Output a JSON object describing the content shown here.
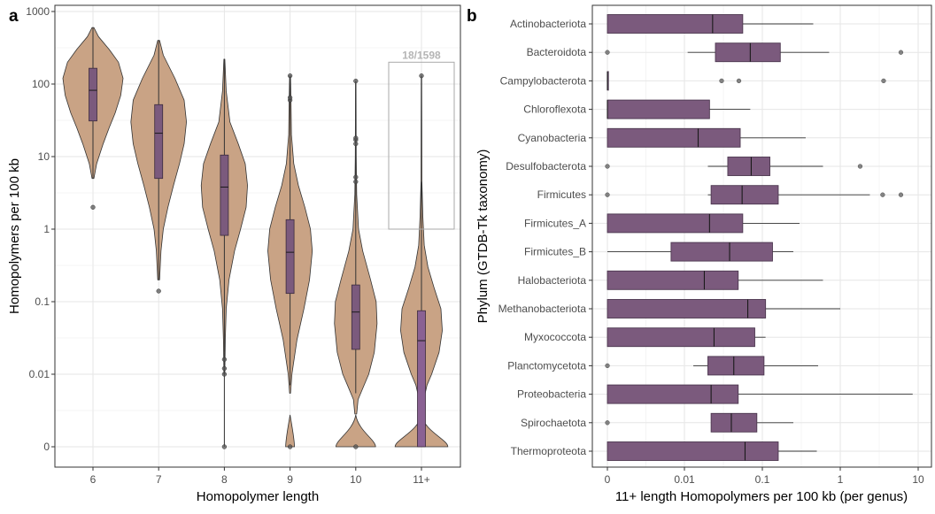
{
  "panels": {
    "a": {
      "letter": "a"
    },
    "b": {
      "letter": "b"
    }
  },
  "chart_data": [
    {
      "type": "violin",
      "panel": "a",
      "xlabel": "Homopolymer length",
      "ylabel": "Homopolymers per 100 kb",
      "yscale": "pseudo-log10 (0 shown at bottom)",
      "ylim": [
        0,
        1000
      ],
      "yticks": [
        "0",
        "0.01",
        "0.1",
        "1",
        "10",
        "100",
        "1000"
      ],
      "yticks_values": [
        0,
        0.01,
        0.1,
        1,
        10,
        100,
        1000
      ],
      "categories": [
        "6",
        "7",
        "8",
        "9",
        "10",
        "11+"
      ],
      "grid": true,
      "colors": {
        "violin_fill": "#c9a385",
        "box_fill": "#7b5a7d",
        "box_fill_11": "#8a6193",
        "outlier": "#555555",
        "highlight_box": "#aaaaaa"
      },
      "annotation": {
        "text": "18/1598",
        "category": "11+",
        "y_range": [
          1,
          200
        ]
      },
      "violins": [
        {
          "category": "6",
          "min": 2,
          "max": 600,
          "q1": 31,
          "median": 82,
          "q3": 165,
          "whisker_low": 5,
          "whisker_high": 600,
          "outliers": [
            2
          ],
          "density": [
            [
              5,
              0.02
            ],
            [
              8,
              0.08
            ],
            [
              15,
              0.22
            ],
            [
              25,
              0.35
            ],
            [
              40,
              0.48
            ],
            [
              70,
              0.6
            ],
            [
              120,
              0.65
            ],
            [
              200,
              0.55
            ],
            [
              300,
              0.35
            ],
            [
              450,
              0.12
            ],
            [
              600,
              0.02
            ]
          ]
        },
        {
          "category": "7",
          "min": 0.14,
          "max": 400,
          "q1": 5,
          "median": 21,
          "q3": 52,
          "whisker_low": 0.2,
          "whisker_high": 400,
          "outliers": [
            0.14
          ],
          "density": [
            [
              0.2,
              0.02
            ],
            [
              0.5,
              0.05
            ],
            [
              1,
              0.1
            ],
            [
              2,
              0.2
            ],
            [
              4,
              0.32
            ],
            [
              8,
              0.45
            ],
            [
              15,
              0.55
            ],
            [
              30,
              0.6
            ],
            [
              60,
              0.55
            ],
            [
              120,
              0.35
            ],
            [
              250,
              0.1
            ],
            [
              400,
              0.02
            ]
          ]
        },
        {
          "category": "8",
          "min": 0,
          "max": 220,
          "q1": 0.82,
          "median": 3.8,
          "q3": 10.5,
          "whisker_low": 0.02,
          "whisker_high": 220,
          "outliers": [
            0,
            0.012,
            0.016,
            0.01
          ],
          "zero_blob": 0,
          "density": [
            [
              0.01,
              0.01
            ],
            [
              0.03,
              0.02
            ],
            [
              0.08,
              0.04
            ],
            [
              0.2,
              0.1
            ],
            [
              0.5,
              0.22
            ],
            [
              1,
              0.35
            ],
            [
              2,
              0.47
            ],
            [
              4,
              0.5
            ],
            [
              8,
              0.45
            ],
            [
              15,
              0.3
            ],
            [
              30,
              0.12
            ],
            [
              80,
              0.04
            ],
            [
              220,
              0.01
            ]
          ]
        },
        {
          "category": "9",
          "min": 0,
          "max": 130,
          "q1": 0.13,
          "median": 0.48,
          "q3": 1.35,
          "whisker_low": 0.005,
          "whisker_high": 130,
          "outliers": [
            0,
            60,
            65,
            130
          ],
          "zero_blob": 0.1,
          "density": [
            [
              0.003,
              0.01
            ],
            [
              0.01,
              0.04
            ],
            [
              0.03,
              0.15
            ],
            [
              0.08,
              0.3
            ],
            [
              0.2,
              0.42
            ],
            [
              0.5,
              0.48
            ],
            [
              1,
              0.44
            ],
            [
              2,
              0.32
            ],
            [
              4,
              0.18
            ],
            [
              8,
              0.08
            ],
            [
              20,
              0.03
            ],
            [
              60,
              0.02
            ],
            [
              130,
              0.01
            ]
          ]
        },
        {
          "category": "10",
          "min": 0,
          "max": 110,
          "q1": 0.022,
          "median": 0.072,
          "q3": 0.17,
          "whisker_low": 0.003,
          "whisker_high": 110,
          "outliers": [
            0,
            4.5,
            5.2,
            15,
            17,
            18,
            110
          ],
          "zero_blob": 0.45,
          "density": [
            [
              0.0008,
              0.02
            ],
            [
              0.002,
              0.05
            ],
            [
              0.005,
              0.18
            ],
            [
              0.01,
              0.28
            ],
            [
              0.02,
              0.4
            ],
            [
              0.05,
              0.46
            ],
            [
              0.1,
              0.44
            ],
            [
              0.2,
              0.32
            ],
            [
              0.5,
              0.15
            ],
            [
              1,
              0.06
            ],
            [
              3,
              0.02
            ],
            [
              10,
              0.01
            ],
            [
              110,
              0.005
            ]
          ]
        },
        {
          "category": "11+",
          "min": 0,
          "max": 130,
          "q1": 0,
          "median": 0.029,
          "q3": 0.075,
          "whisker_low": 0,
          "whisker_high": 4.5,
          "outliers": [
            130
          ],
          "zero_blob": 0.6,
          "density": [
            [
              0.002,
              0.05
            ],
            [
              0.005,
              0.12
            ],
            [
              0.01,
              0.22
            ],
            [
              0.02,
              0.38
            ],
            [
              0.04,
              0.45
            ],
            [
              0.08,
              0.42
            ],
            [
              0.15,
              0.28
            ],
            [
              0.3,
              0.14
            ],
            [
              0.6,
              0.06
            ],
            [
              1.5,
              0.03
            ],
            [
              4.5,
              0.01
            ],
            [
              130,
              0.005
            ]
          ]
        }
      ]
    },
    {
      "type": "boxplot-horizontal",
      "panel": "b",
      "xlabel": "11+ length Homopolymers per 100 kb (per genus)",
      "ylabel": "Phylum (GTDB-Tk taxonomy)",
      "xscale": "pseudo-log10 (0 shown at left)",
      "xlim": [
        0,
        10
      ],
      "xticks": [
        "0",
        "0.01",
        "0.1",
        "1",
        "10"
      ],
      "xticks_values": [
        0,
        0.01,
        0.1,
        1,
        10
      ],
      "grid": true,
      "colors": {
        "box_fill": "#7b5a7d",
        "box_stroke": "#4d3850",
        "outlier": "#666666"
      },
      "categories": [
        "Actinobacteriota",
        "Bacteroidota",
        "Campylobacterota",
        "Chloroflexota",
        "Cyanobacteria",
        "Desulfobacterota",
        "Firmicutes",
        "Firmicutes_A",
        "Firmicutes_B",
        "Halobacteriota",
        "Methanobacteriota",
        "Myxococcota",
        "Planctomycetota",
        "Proteobacteria",
        "Spirochaetota",
        "Thermoproteota"
      ],
      "boxes": [
        {
          "name": "Actinobacteriota",
          "whisker_low": 0,
          "q1": 0,
          "median": 0.023,
          "q3": 0.056,
          "whisker_high": 0.45,
          "outliers": []
        },
        {
          "name": "Bacteroidota",
          "whisker_low": 0.011,
          "q1": 0.025,
          "median": 0.07,
          "q3": 0.17,
          "whisker_high": 0.72,
          "outliers": [
            0,
            6
          ]
        },
        {
          "name": "Campylobacterota",
          "whisker_low": 0,
          "q1": 0,
          "median": 0,
          "q3": 0,
          "whisker_high": 0,
          "outliers": [
            0.03,
            0.05,
            3.6
          ]
        },
        {
          "name": "Chloroflexota",
          "whisker_low": 0,
          "q1": 0,
          "median": 0,
          "q3": 0.021,
          "whisker_high": 0.07,
          "outliers": []
        },
        {
          "name": "Cyanobacteria",
          "whisker_low": 0,
          "q1": 0,
          "median": 0.015,
          "q3": 0.052,
          "whisker_high": 0.36,
          "outliers": []
        },
        {
          "name": "Desulfobacterota",
          "whisker_low": 0.02,
          "q1": 0.036,
          "median": 0.072,
          "q3": 0.125,
          "whisker_high": 0.6,
          "outliers": [
            0,
            1.8
          ]
        },
        {
          "name": "Firmicutes",
          "whisker_low": 0.02,
          "q1": 0.022,
          "median": 0.055,
          "q3": 0.16,
          "whisker_high": 2.4,
          "outliers": [
            0,
            3.5,
            6
          ]
        },
        {
          "name": "Firmicutes_A",
          "whisker_low": 0,
          "q1": 0,
          "median": 0.021,
          "q3": 0.056,
          "whisker_high": 0.3,
          "outliers": []
        },
        {
          "name": "Firmicutes_B",
          "whisker_low": 0,
          "q1": 0.0045,
          "median": 0.038,
          "q3": 0.135,
          "whisker_high": 0.25,
          "outliers": []
        },
        {
          "name": "Halobacteriota",
          "whisker_low": 0,
          "q1": 0,
          "median": 0.018,
          "q3": 0.049,
          "whisker_high": 0.6,
          "outliers": []
        },
        {
          "name": "Methanobacteriota",
          "whisker_low": 0,
          "q1": 0,
          "median": 0.065,
          "q3": 0.11,
          "whisker_high": 1,
          "outliers": []
        },
        {
          "name": "Myxococcota",
          "whisker_low": 0,
          "q1": 0,
          "median": 0.024,
          "q3": 0.08,
          "whisker_high": 0.11,
          "outliers": []
        },
        {
          "name": "Planctomycetota",
          "whisker_low": 0.013,
          "q1": 0.02,
          "median": 0.043,
          "q3": 0.105,
          "whisker_high": 0.52,
          "outliers": [
            0
          ]
        },
        {
          "name": "Proteobacteria",
          "whisker_low": 0,
          "q1": 0,
          "median": 0.022,
          "q3": 0.049,
          "whisker_high": 8.5,
          "outliers": []
        },
        {
          "name": "Spirochaetota",
          "whisker_low": 0.022,
          "q1": 0.022,
          "median": 0.04,
          "q3": 0.085,
          "whisker_high": 0.25,
          "outliers": [
            0
          ]
        },
        {
          "name": "Thermoproteota",
          "whisker_low": 0,
          "q1": 0,
          "median": 0.06,
          "q3": 0.16,
          "whisker_high": 0.5,
          "outliers": []
        }
      ]
    }
  ]
}
